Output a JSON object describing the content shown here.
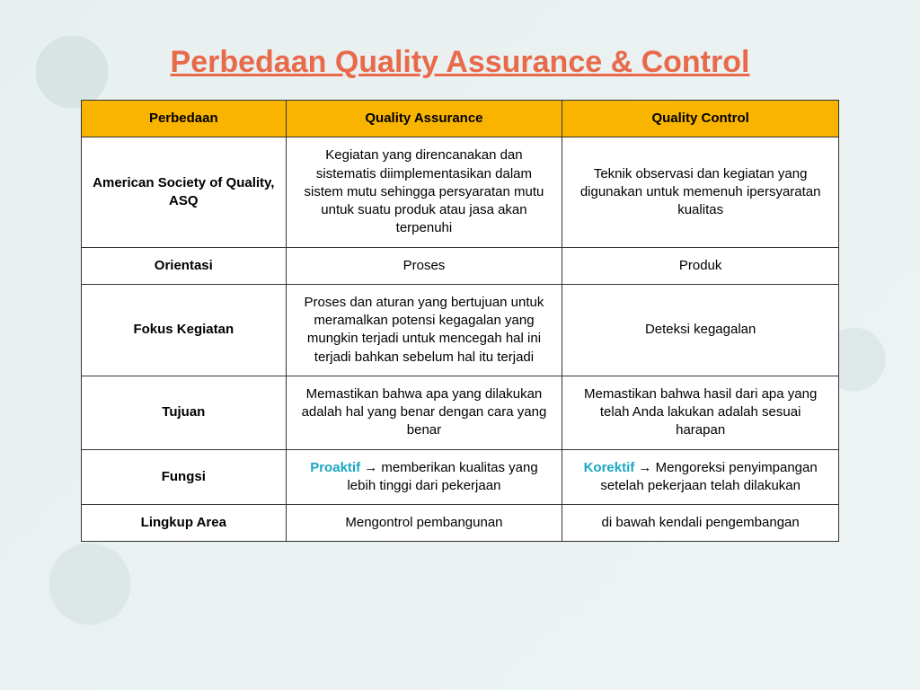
{
  "title": "Perbedaan Quality Assurance & Control",
  "title_color": "#e86a4a",
  "table": {
    "header_bg": "#f9b400",
    "header_text_color": "#000000",
    "border_color": "#333333",
    "highlight_color": "#1aa6c4",
    "columns": [
      "Perbedaan",
      "Quality Assurance",
      "Quality Control"
    ],
    "rows": [
      {
        "label": "American Society of Quality, ASQ",
        "qa": "Kegiatan yang direncanakan dan sistematis diimplementasikan dalam sistem mutu sehingga persyaratan mutu untuk suatu produk atau jasa akan terpenuhi",
        "qc": "Teknik observasi dan kegiatan yang digunakan untuk memenuh ipersyaratan kualitas"
      },
      {
        "label": "Orientasi",
        "qa": "Proses",
        "qc": "Produk"
      },
      {
        "label": "Fokus Kegiatan",
        "qa": "Proses dan aturan yang bertujuan untuk meramalkan potensi kegagalan yang mungkin terjadi untuk mencegah hal ini terjadi bahkan sebelum hal itu terjadi",
        "qc": "Deteksi kegagalan"
      },
      {
        "label": "Tujuan",
        "qa": "Memastikan bahwa apa yang dilakukan adalah hal yang benar dengan cara yang benar",
        "qc": "Memastikan bahwa hasil dari apa yang telah Anda lakukan adalah sesuai harapan"
      },
      {
        "label": "Fungsi",
        "qa_highlight": "Proaktif",
        "qa_rest": " → memberikan kualitas yang lebih tinggi dari pekerjaan",
        "qc_highlight": "Korektif",
        "qc_rest": " → Mengoreksi penyimpangan setelah pekerjaan telah dilakukan"
      },
      {
        "label": "Lingkup Area",
        "qa": "Mengontrol pembangunan",
        "qc": "di bawah kendali pengembangan"
      }
    ]
  }
}
